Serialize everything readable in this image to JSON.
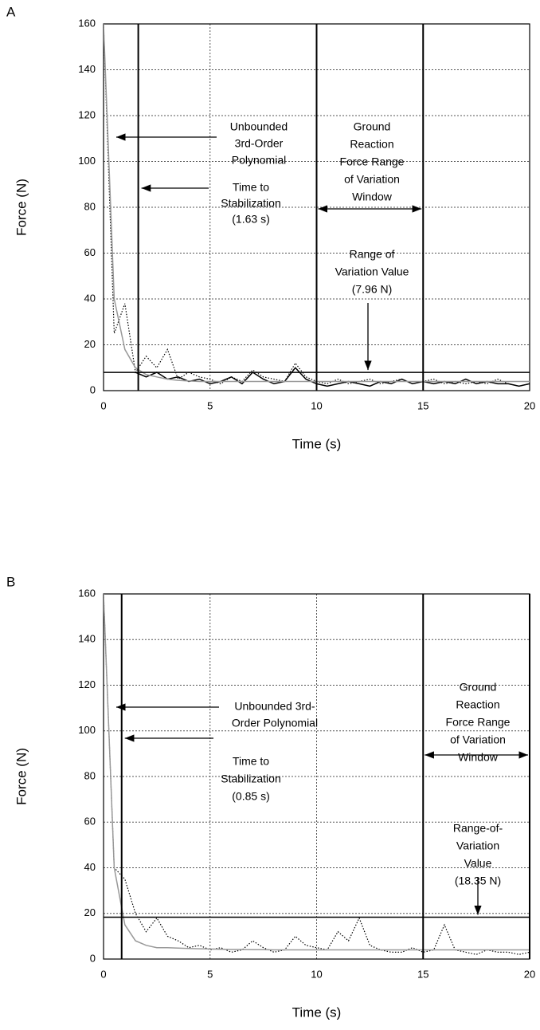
{
  "chart_data": [
    {
      "type": "line",
      "panel_label": "A",
      "xlabel": "Time (s)",
      "ylabel": "Force (N)",
      "xlim": [
        0,
        20
      ],
      "ylim": [
        0,
        160
      ],
      "xticks": [
        0,
        5,
        10,
        15,
        20
      ],
      "yticks": [
        0,
        20,
        40,
        60,
        80,
        100,
        120,
        140,
        160
      ],
      "grid": true,
      "x": [
        0,
        0.5,
        1,
        1.5,
        2,
        2.5,
        3,
        3.5,
        4,
        4.5,
        5,
        5.5,
        6,
        6.5,
        7,
        7.5,
        8,
        8.5,
        9,
        9.5,
        10,
        10.5,
        11,
        11.5,
        12,
        12.5,
        13,
        13.5,
        14,
        14.5,
        15,
        15.5,
        16,
        16.5,
        17,
        17.5,
        18,
        18.5,
        19,
        19.5,
        20
      ],
      "series": [
        {
          "color": "#000000",
          "style": "dotted",
          "values": [
            160,
            25,
            38,
            8,
            15,
            10,
            18,
            5,
            8,
            6,
            5,
            3,
            6,
            4,
            9,
            6,
            5,
            4,
            12,
            6,
            4,
            3,
            5,
            3,
            4,
            5,
            3,
            4,
            5,
            3,
            4,
            5,
            3,
            4,
            3,
            4,
            3,
            5,
            3,
            2,
            3
          ]
        },
        {
          "color": "#000000",
          "style": "solid",
          "values": [
            null,
            null,
            null,
            8,
            6,
            8,
            5,
            6,
            4,
            5,
            3,
            4,
            6,
            3,
            8,
            5,
            3,
            4,
            10,
            5,
            3,
            2,
            3,
            4,
            3,
            2,
            4,
            3,
            5,
            3,
            4,
            3,
            4,
            3,
            5,
            3,
            4,
            3,
            3,
            2,
            3
          ]
        },
        {
          "color": "#999999",
          "style": "solid",
          "values": [
            160,
            40,
            18,
            10,
            7,
            6,
            5,
            4.5,
            4.2,
            4,
            4,
            4,
            4,
            4,
            4,
            4,
            4,
            4,
            4,
            4,
            4,
            4,
            4,
            4,
            4,
            4,
            4,
            4,
            4,
            4,
            4,
            4,
            4,
            4,
            4,
            4,
            4,
            4,
            4,
            4,
            4
          ]
        }
      ],
      "stabilization_time": 1.63,
      "window": [
        10,
        15
      ],
      "range_value": 7.96,
      "annotations": {
        "polynomial": [
          "Unbounded",
          "3rd-Order",
          "Polynomial"
        ],
        "stabilization": [
          "Time to",
          "Stabilization",
          "(1.63 s)"
        ],
        "window": [
          "Ground",
          "Reaction",
          "Force Range",
          "of Variation",
          "Window"
        ],
        "range": [
          "Range of",
          "Variation Value",
          "(7.96 N)"
        ]
      }
    },
    {
      "type": "line",
      "panel_label": "B",
      "xlabel": "Time (s)",
      "ylabel": "Force (N)",
      "xlim": [
        0,
        20
      ],
      "ylim": [
        0,
        160
      ],
      "xticks": [
        0,
        5,
        10,
        15,
        20
      ],
      "yticks": [
        0,
        20,
        40,
        60,
        80,
        100,
        120,
        140,
        160
      ],
      "grid": true,
      "x": [
        0,
        0.5,
        1,
        1.5,
        2,
        2.5,
        3,
        3.5,
        4,
        4.5,
        5,
        5.5,
        6,
        6.5,
        7,
        7.5,
        8,
        8.5,
        9,
        9.5,
        10,
        10.5,
        11,
        11.5,
        12,
        12.5,
        13,
        13.5,
        14,
        14.5,
        15,
        15.5,
        16,
        16.5,
        17,
        17.5,
        18,
        18.5,
        19,
        19.5,
        20
      ],
      "series": [
        {
          "color": "#000000",
          "style": "dotted",
          "values": [
            160,
            40,
            35,
            20,
            12,
            18,
            10,
            8,
            5,
            6,
            4,
            5,
            3,
            4,
            8,
            5,
            3,
            4,
            10,
            6,
            5,
            4,
            12,
            8,
            18,
            6,
            4,
            3,
            3,
            5,
            3,
            4,
            15,
            4,
            3,
            2,
            4,
            3,
            3,
            2,
            3
          ]
        },
        {
          "color": "#999999",
          "style": "solid",
          "values": [
            160,
            40,
            15,
            8,
            6,
            5,
            5,
            4.8,
            4.6,
            4.5,
            4.4,
            4.3,
            4.2,
            4.2,
            4.1,
            4.1,
            4,
            4,
            4,
            4,
            4,
            4,
            4,
            4,
            4,
            4,
            4,
            4,
            4,
            4,
            4,
            4,
            4,
            4,
            4,
            4,
            4,
            4,
            4,
            4,
            4
          ]
        }
      ],
      "stabilization_time": 0.85,
      "window": [
        15,
        20
      ],
      "range_value": 18.35,
      "annotations": {
        "polynomial": [
          "Unbounded 3rd-",
          "Order Polynomial"
        ],
        "stabilization": [
          "Time to",
          "Stabilization",
          "(0.85 s)"
        ],
        "window": [
          "Ground",
          "Reaction",
          "Force Range",
          "of Variation",
          "Window"
        ],
        "range": [
          "Range-of-",
          "Variation",
          "Value",
          "(18.35 N)"
        ]
      }
    }
  ]
}
